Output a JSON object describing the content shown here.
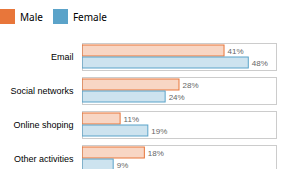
{
  "chart_data": {
    "type": "bar",
    "orientation": "horizontal",
    "categories": [
      "Other activities",
      "Online shoping",
      "Social networks",
      "Email"
    ],
    "series": [
      {
        "name": "Male",
        "color": "#E8763A",
        "values": [
          18,
          11,
          28,
          41
        ],
        "value_labels": [
          "18%",
          "11%",
          "28%",
          "41%"
        ]
      },
      {
        "name": "Female",
        "color": "#5BA3C9",
        "values": [
          9,
          19,
          24,
          48
        ],
        "value_labels": [
          "9%",
          "19%",
          "24%",
          "48%"
        ]
      }
    ],
    "xlim": [
      0,
      56
    ],
    "xticks": [],
    "grid": false,
    "legend": "top",
    "data_labels": true,
    "tick_labels": "y"
  }
}
